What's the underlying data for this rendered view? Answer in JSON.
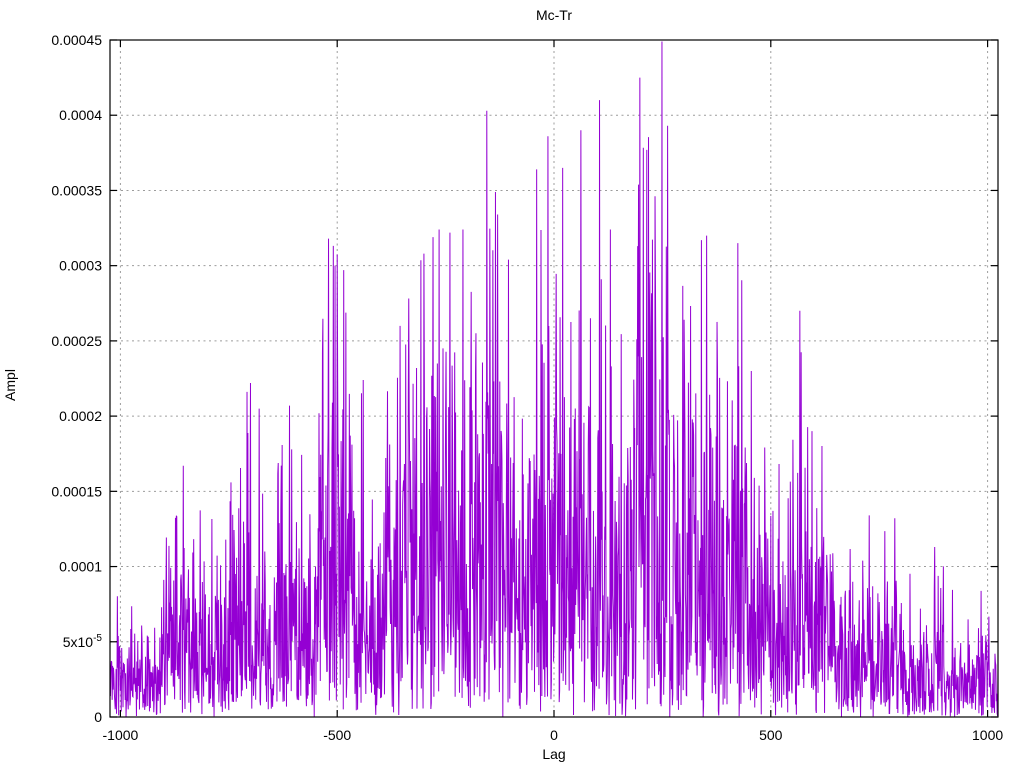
{
  "figure": {
    "background": "#ffffff"
  },
  "chart_data": {
    "type": "line",
    "title": "Mc-Tr",
    "xlabel": "Lag",
    "ylabel": "Ampl",
    "xlim": [
      -1024,
      1024
    ],
    "ylim": [
      0,
      0.00045
    ],
    "grid": true,
    "legend": "none",
    "line_color": "#9400d3",
    "grid_color": "#9c9c9c",
    "border_color": "#000000",
    "text_color": "#000000",
    "x_ticks": [
      {
        "value": -1000,
        "label": "-1000"
      },
      {
        "value": -500,
        "label": "-500"
      },
      {
        "value": 0,
        "label": "0"
      },
      {
        "value": 500,
        "label": "500"
      },
      {
        "value": 1000,
        "label": "1000"
      }
    ],
    "y_ticks": [
      {
        "value": 0,
        "label": "0"
      },
      {
        "value": 5e-05,
        "label": "5x10^-5"
      },
      {
        "value": 0.0001,
        "label": "0.0001"
      },
      {
        "value": 0.00015,
        "label": "0.00015"
      },
      {
        "value": 0.0002,
        "label": "0.0002"
      },
      {
        "value": 0.00025,
        "label": "0.00025"
      },
      {
        "value": 0.0003,
        "label": "0.0003"
      },
      {
        "value": 0.00035,
        "label": "0.00035"
      },
      {
        "value": 0.0004,
        "label": "0.0004"
      },
      {
        "value": 0.00045,
        "label": "0.00045"
      }
    ],
    "signal": {
      "description": "Dense noisy correlation-amplitude trace (absolute-value noise bounded by a slowly varying envelope), one sample per lag",
      "lag_start": -1024,
      "lag_end": 1024,
      "lag_step": 1,
      "noise_seed": 1337,
      "noise_divisor": 2.6,
      "envelope": [
        [
          -1024,
          9e-05
        ],
        [
          -960,
          8e-05
        ],
        [
          -905,
          0.000105
        ],
        [
          -855,
          0.00017
        ],
        [
          -800,
          0.00013
        ],
        [
          -745,
          0.000175
        ],
        [
          -700,
          0.000225
        ],
        [
          -655,
          0.00018
        ],
        [
          -610,
          0.000205
        ],
        [
          -560,
          0.00015
        ],
        [
          -520,
          0.00032
        ],
        [
          -480,
          0.000295
        ],
        [
          -440,
          0.000225
        ],
        [
          -395,
          0.0002
        ],
        [
          -355,
          0.00026
        ],
        [
          -300,
          0.00031
        ],
        [
          -265,
          0.000325
        ],
        [
          -210,
          0.000325
        ],
        [
          -155,
          0.000405
        ],
        [
          -130,
          0.000335
        ],
        [
          -105,
          0.000305
        ],
        [
          -70,
          0.00028
        ],
        [
          -40,
          0.000365
        ],
        [
          -14,
          0.000385
        ],
        [
          30,
          0.00032
        ],
        [
          62,
          0.00039
        ],
        [
          80,
          0.00029
        ],
        [
          105,
          0.00041
        ],
        [
          130,
          0.000325
        ],
        [
          160,
          0.00026
        ],
        [
          198,
          0.000425
        ],
        [
          214,
          0.000385
        ],
        [
          249,
          0.00045
        ],
        [
          265,
          0.000375
        ],
        [
          295,
          0.000285
        ],
        [
          340,
          0.00032
        ],
        [
          370,
          0.000285
        ],
        [
          400,
          0.00027
        ],
        [
          424,
          0.000315
        ],
        [
          455,
          0.00023
        ],
        [
          490,
          0.000215
        ],
        [
          545,
          0.000215
        ],
        [
          567,
          0.00027
        ],
        [
          595,
          0.00019
        ],
        [
          630,
          0.000175
        ],
        [
          665,
          0.00014
        ],
        [
          700,
          0.00014
        ],
        [
          745,
          0.00013
        ],
        [
          790,
          0.00014
        ],
        [
          835,
          8.5e-05
        ],
        [
          878,
          0.000115
        ],
        [
          925,
          8e-05
        ],
        [
          978,
          9e-05
        ],
        [
          1024,
          5.5e-05
        ]
      ],
      "peaks": [
        [
          -855,
          0.000167
        ],
        [
          -700,
          0.000222
        ],
        [
          -680,
          0.000205
        ],
        [
          -610,
          0.000207
        ],
        [
          -520,
          0.000318
        ],
        [
          -505,
          0.0003
        ],
        [
          -485,
          0.000297
        ],
        [
          -440,
          0.000224
        ],
        [
          -355,
          0.00026
        ],
        [
          -300,
          0.000308
        ],
        [
          -265,
          0.000324
        ],
        [
          -240,
          0.000322
        ],
        [
          -210,
          0.000324
        ],
        [
          -155,
          0.000403
        ],
        [
          -130,
          0.000334
        ],
        [
          -105,
          0.000304
        ],
        [
          -40,
          0.000364
        ],
        [
          -14,
          0.000386
        ],
        [
          20,
          0.000365
        ],
        [
          62,
          0.00039
        ],
        [
          105,
          0.00041
        ],
        [
          130,
          0.000324
        ],
        [
          198,
          0.000425
        ],
        [
          214,
          0.000377
        ],
        [
          249,
          0.000449
        ],
        [
          262,
          0.000393
        ],
        [
          340,
          0.000317
        ],
        [
          352,
          0.00032
        ],
        [
          424,
          0.000315
        ],
        [
          455,
          0.00023
        ],
        [
          567,
          0.00027
        ],
        [
          595,
          0.00019
        ],
        [
          878,
          0.000113
        ]
      ]
    }
  }
}
